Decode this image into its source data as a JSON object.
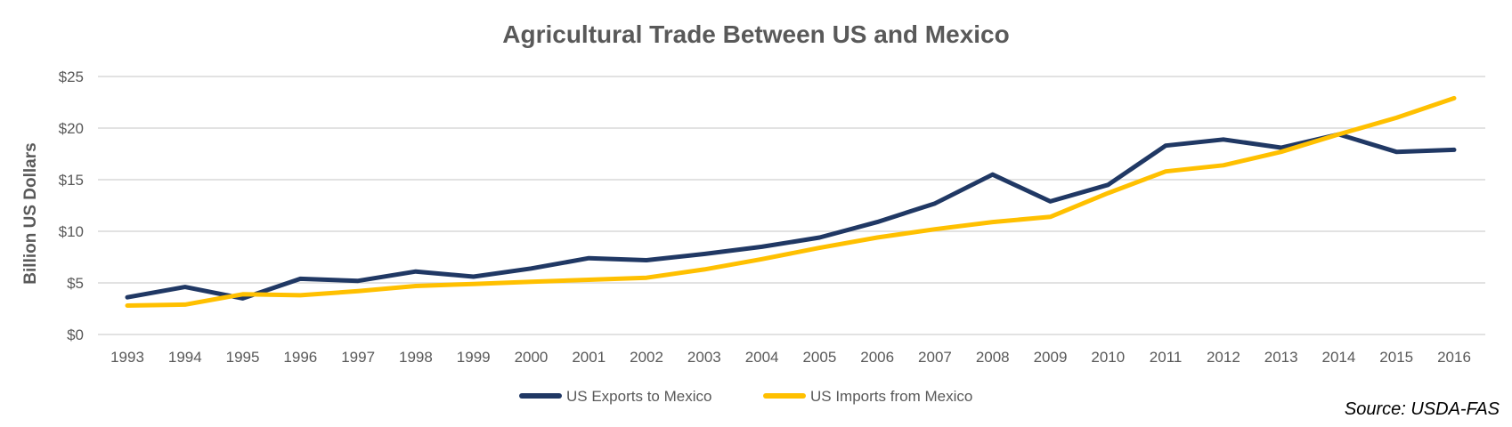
{
  "chart_data": {
    "type": "line",
    "title": "Agricultural Trade Between US and Mexico",
    "ylabel": "Billion US Dollars",
    "xlabel": "",
    "ylim": [
      0,
      25
    ],
    "y_ticks": [
      "$0",
      "$5",
      "$10",
      "$15",
      "$20",
      "$25"
    ],
    "y_tick_values": [
      0,
      5,
      10,
      15,
      20,
      25
    ],
    "grid": true,
    "legend_position": "bottom",
    "x": [
      "1993",
      "1994",
      "1995",
      "1996",
      "1997",
      "1998",
      "1999",
      "2000",
      "2001",
      "2002",
      "2003",
      "2004",
      "2005",
      "2006",
      "2007",
      "2008",
      "2009",
      "2010",
      "2011",
      "2012",
      "2013",
      "2014",
      "2015",
      "2016"
    ],
    "series": [
      {
        "name": "US Exports to Mexico",
        "color": "#203864",
        "values": [
          3.6,
          4.6,
          3.5,
          5.4,
          5.2,
          6.1,
          5.6,
          6.4,
          7.4,
          7.2,
          7.8,
          8.5,
          9.4,
          10.9,
          12.7,
          15.5,
          12.9,
          14.5,
          18.3,
          18.9,
          18.1,
          19.4,
          17.7,
          17.9
        ]
      },
      {
        "name": "US Imports from Mexico",
        "color": "#FFC000",
        "values": [
          2.8,
          2.9,
          3.9,
          3.8,
          4.2,
          4.7,
          4.9,
          5.1,
          5.3,
          5.5,
          6.3,
          7.3,
          8.4,
          9.4,
          10.2,
          10.9,
          11.4,
          13.7,
          15.8,
          16.4,
          17.7,
          19.4,
          21.0,
          22.9
        ]
      }
    ]
  },
  "source_label": "Source: USDA-FAS"
}
